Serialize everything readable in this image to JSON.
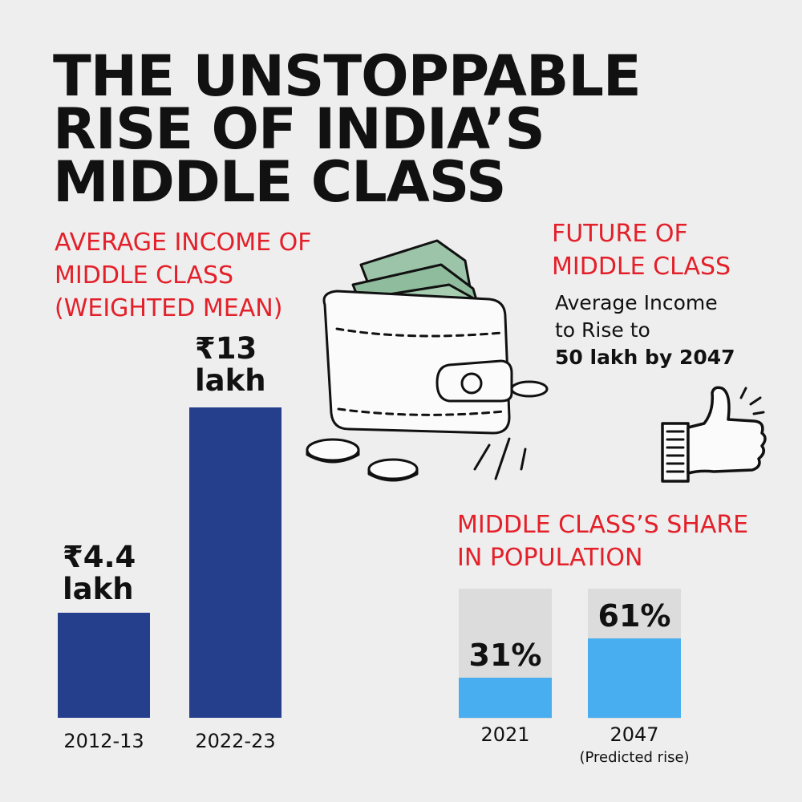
{
  "title_lines": [
    "THE UNSTOPPABLE",
    "RISE OF INDIA’S",
    "MIDDLE CLASS"
  ],
  "income_heading_lines": [
    "AVERAGE INCOME OF",
    "MIDDLE CLASS",
    "(WEIGHTED MEAN)"
  ],
  "future": {
    "heading_lines": [
      "FUTURE OF",
      "MIDDLE CLASS"
    ],
    "text_line1": "Average Income",
    "text_line2": "to Rise to",
    "text_bold": "50 lakh by 2047"
  },
  "share_heading_lines": [
    "MIDDLE CLASS’S SHARE",
    "IN POPULATION"
  ],
  "icons": [
    "wallet-icon",
    "coin-icon",
    "thumbs-up-icon"
  ],
  "colors": {
    "accent_red": "#e3202a",
    "income_bar": "#263f8c",
    "share_fill": "#49aef0",
    "share_track": "#dcdcdc"
  },
  "chart_data": [
    {
      "type": "bar",
      "title": "AVERAGE INCOME OF MIDDLE CLASS (WEIGHTED MEAN)",
      "categories": [
        "2012-13",
        "2022-23"
      ],
      "values": [
        4.4,
        13
      ],
      "unit": "lakh",
      "data_labels": [
        [
          "₹4.4",
          "lakh"
        ],
        [
          "₹13",
          "lakh"
        ]
      ]
    },
    {
      "type": "bar",
      "title": "MIDDLE CLASS’S SHARE IN POPULATION",
      "categories": [
        "2021",
        "2047"
      ],
      "category_notes": [
        "",
        "(Predicted rise)"
      ],
      "values": [
        31,
        61
      ],
      "unit": "%",
      "ylim": [
        0,
        100
      ],
      "data_labels": [
        "31%",
        "61%"
      ]
    }
  ]
}
